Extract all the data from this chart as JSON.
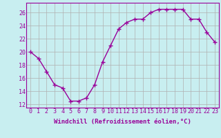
{
  "x": [
    0,
    1,
    2,
    3,
    4,
    5,
    6,
    7,
    8,
    9,
    10,
    11,
    12,
    13,
    14,
    15,
    16,
    17,
    18,
    19,
    20,
    21,
    22,
    23
  ],
  "y": [
    20.0,
    19.0,
    17.0,
    15.0,
    14.5,
    12.5,
    12.5,
    13.0,
    15.0,
    18.5,
    21.0,
    23.5,
    24.5,
    25.0,
    25.0,
    26.0,
    26.5,
    26.5,
    26.5,
    26.5,
    25.0,
    25.0,
    23.0,
    21.5
  ],
  "line_color": "#990099",
  "marker": "+",
  "marker_size": 4,
  "bg_color": "#c8eef0",
  "grid_color": "#b0b0b0",
  "xlabel": "Windchill (Refroidissement éolien,°C)",
  "xlim": [
    -0.5,
    23.5
  ],
  "ylim": [
    11.5,
    27.5
  ],
  "yticks": [
    12,
    14,
    16,
    18,
    20,
    22,
    24,
    26
  ],
  "xtick_labels": [
    "0",
    "1",
    "2",
    "3",
    "4",
    "5",
    "6",
    "7",
    "8",
    "9",
    "10",
    "11",
    "12",
    "13",
    "14",
    "15",
    "16",
    "17",
    "18",
    "19",
    "20",
    "21",
    "22",
    "23"
  ],
  "label_fontsize": 6.5,
  "tick_fontsize": 6.0
}
